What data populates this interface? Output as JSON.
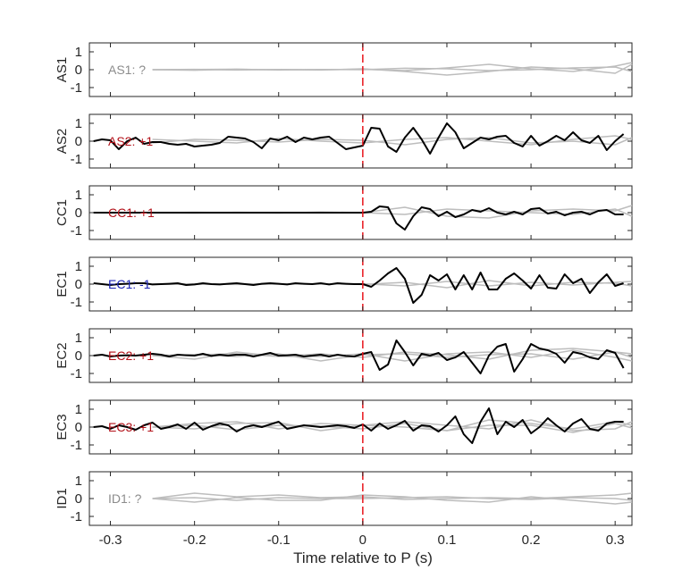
{
  "chart_data": {
    "type": "line",
    "xlabel": "Time relative to P (s)",
    "xlim": [
      -0.325,
      0.32
    ],
    "x_ticks": [
      -0.3,
      -0.2,
      -0.1,
      0,
      0.1,
      0.2,
      0.3
    ],
    "x_tick_labels": [
      "-0.3",
      "-0.2",
      "-0.1",
      "0",
      "0.1",
      "0.2",
      "0.3"
    ],
    "ylim": [
      -1.5,
      1.5
    ],
    "y_ticks": [
      1,
      0,
      -1
    ],
    "y_tick_labels": [
      "1",
      "0",
      "-1"
    ],
    "marker_time": 0,
    "colors": {
      "axis": "#262626",
      "background_trace": "#bdbdbd",
      "main_trace": "#000000",
      "marker": "#e8141c",
      "positive_label": "#b3121a",
      "negative_label": "#1d25b5",
      "unknown_label": "#8c8c8c"
    },
    "background_t": [
      -0.25,
      -0.2,
      -0.15,
      -0.1,
      -0.05,
      0.0,
      0.05,
      0.1,
      0.15,
      0.2,
      0.25,
      0.3,
      0.32
    ],
    "t": [
      -0.32,
      -0.31,
      -0.3,
      -0.29,
      -0.28,
      -0.27,
      -0.26,
      -0.25,
      -0.24,
      -0.23,
      -0.22,
      -0.21,
      -0.2,
      -0.19,
      -0.18,
      -0.17,
      -0.16,
      -0.15,
      -0.14,
      -0.13,
      -0.12,
      -0.11,
      -0.1,
      -0.09,
      -0.08,
      -0.07,
      -0.06,
      -0.05,
      -0.04,
      -0.03,
      -0.02,
      -0.01,
      0.0,
      0.01,
      0.02,
      0.03,
      0.04,
      0.05,
      0.06,
      0.07,
      0.08,
      0.09,
      0.1,
      0.11,
      0.12,
      0.13,
      0.14,
      0.15,
      0.16,
      0.17,
      0.18,
      0.19,
      0.2,
      0.21,
      0.22,
      0.23,
      0.24,
      0.25,
      0.26,
      0.27,
      0.28,
      0.29,
      0.3,
      0.31
    ],
    "panels": [
      {
        "name": "AS1",
        "label": "AS1: ?",
        "polarity": "unknown",
        "background_series": [
          [
            0,
            0.02,
            -0.02,
            0.01,
            0,
            0.02,
            -0.05,
            0.1,
            0.3,
            0.05,
            -0.1,
            0.2,
            0.4
          ],
          [
            0,
            -0.03,
            0.02,
            0,
            -0.02,
            0.05,
            -0.1,
            -0.3,
            -0.1,
            0.15,
            0.05,
            -0.2,
            0.3
          ],
          [
            0,
            0.01,
            0.03,
            -0.02,
            0.01,
            0,
            0.08,
            0.05,
            -0.05,
            0,
            0.1,
            0.15,
            -0.1
          ]
        ],
        "main_series": []
      },
      {
        "name": "AS2",
        "label": "AS2: +1",
        "polarity": "positive",
        "background_series": [
          [
            0.1,
            0,
            -0.1,
            0.15,
            0,
            -0.1,
            0.1,
            0.2,
            0,
            -0.2,
            0.1,
            0.3,
            0.1
          ],
          [
            -0.1,
            0.1,
            0.05,
            -0.05,
            0.1,
            0.05,
            -0.2,
            0.1,
            0.2,
            -0.1,
            0,
            -0.2,
            0.2
          ]
        ],
        "main_series": [
          0,
          0.1,
          0.05,
          -0.45,
          0.0,
          0.2,
          -0.15,
          -0.05,
          -0.05,
          -0.15,
          -0.2,
          -0.15,
          -0.3,
          -0.25,
          -0.2,
          -0.1,
          0.25,
          0.2,
          0.15,
          -0.05,
          -0.4,
          0.15,
          0.05,
          0.25,
          -0.05,
          0.2,
          0.1,
          0.2,
          0.25,
          -0.1,
          -0.45,
          -0.35,
          -0.25,
          0.75,
          0.7,
          -0.3,
          -0.6,
          0.2,
          0.75,
          0.1,
          -0.7,
          0.2,
          1.0,
          0.5,
          -0.4,
          -0.1,
          0.2,
          0.1,
          0.25,
          0.3,
          -0.1,
          -0.3,
          0.3,
          -0.25,
          0.0,
          0.3,
          0.05,
          0.5,
          0.05,
          -0.1,
          0.3,
          -0.5,
          0.0,
          0.4
        ]
      },
      {
        "name": "CC1",
        "label": "CC1: +1",
        "polarity": "positive",
        "background_series": [
          [
            0,
            0.02,
            0,
            -0.02,
            0.03,
            0,
            0.3,
            -0.2,
            -0.3,
            0.1,
            0.2,
            0.1,
            0.4
          ],
          [
            0,
            -0.02,
            0.02,
            0,
            -0.01,
            0,
            -0.1,
            0.2,
            0.1,
            0,
            -0.1,
            0.2,
            -0.2
          ]
        ],
        "main_series": [
          0,
          0,
          0,
          0,
          0,
          0,
          0,
          0,
          0,
          0,
          0,
          0,
          0,
          0,
          0,
          0,
          0,
          0,
          0,
          0,
          0,
          0,
          0,
          0,
          0,
          0,
          0,
          0,
          0,
          0,
          0,
          0,
          0,
          0.05,
          0.35,
          0.3,
          -0.6,
          -0.95,
          -0.2,
          0.3,
          0.2,
          -0.2,
          0.05,
          -0.25,
          -0.1,
          0.15,
          0.05,
          0.25,
          0.0,
          -0.1,
          0.05,
          -0.1,
          0.2,
          0.25,
          -0.05,
          0.05,
          -0.15,
          0.0,
          0.05,
          -0.1,
          0.1,
          0.15,
          -0.1,
          -0.1
        ]
      },
      {
        "name": "EC1",
        "label": "EC1: -1",
        "polarity": "negative",
        "background_series": [
          [
            0,
            0.02,
            -0.02,
            0,
            0.02,
            -0.02,
            0.1,
            -0.2,
            0.2,
            -0.1,
            0.1,
            0.05,
            -0.1
          ],
          [
            0,
            -0.02,
            0.02,
            0.01,
            0,
            0.02,
            -0.1,
            0.15,
            -0.1,
            0.1,
            -0.05,
            0.1,
            0.15
          ]
        ],
        "main_series": [
          0.05,
          0,
          -0.05,
          0.0,
          0.02,
          0.05,
          0.05,
          -0.02,
          0,
          0.02,
          0.05,
          -0.05,
          -0.02,
          0.05,
          0,
          -0.02,
          0.02,
          0.05,
          0,
          -0.05,
          0.02,
          0.05,
          0.02,
          -0.02,
          0.05,
          0.02,
          0,
          0.05,
          -0.02,
          0.05,
          0.02,
          0.0,
          0.0,
          -0.15,
          0.2,
          0.6,
          0.9,
          0.3,
          -1.05,
          -0.6,
          0.5,
          0.2,
          0.55,
          -0.3,
          0.5,
          -0.3,
          0.65,
          -0.3,
          -0.3,
          0.3,
          0.6,
          0.2,
          -0.25,
          0.5,
          -0.2,
          -0.25,
          0.55,
          0.05,
          0.3,
          -0.5,
          0.1,
          0.55,
          -0.1,
          0.05
        ]
      },
      {
        "name": "EC2",
        "label": "EC2: +1",
        "polarity": "positive",
        "background_series": [
          [
            0,
            0.05,
            0.1,
            -0.05,
            0.1,
            -0.1,
            0.2,
            0.05,
            -0.2,
            0.3,
            0.4,
            0.2,
            0.1
          ],
          [
            0,
            -0.2,
            0.2,
            -0.05,
            -0.05,
            0.1,
            -0.3,
            0.1,
            0.2,
            -0.1,
            0.3,
            -0.1,
            -0.3
          ],
          [
            0,
            0.05,
            -0.05,
            0.1,
            -0.3,
            0.05,
            0.1,
            -0.1,
            0.05,
            0.1,
            -0.2,
            0.2,
            -0.1
          ]
        ],
        "main_series": [
          0,
          0.05,
          -0.05,
          0,
          0.02,
          0.0,
          0.05,
          0.1,
          0.05,
          -0.05,
          0.05,
          0.02,
          0.0,
          0.1,
          -0.02,
          0.05,
          0.0,
          0.05,
          0.05,
          -0.05,
          0.05,
          0.15,
          0.0,
          0.02,
          0.05,
          -0.05,
          0.0,
          0.05,
          -0.05,
          0.05,
          -0.02,
          -0.05,
          0.1,
          0.2,
          -0.8,
          -0.5,
          0.85,
          0.2,
          -0.55,
          0.1,
          0.0,
          0.15,
          -0.25,
          -0.1,
          0.2,
          -0.4,
          -1.0,
          0.0,
          0.5,
          0.65,
          -0.9,
          -0.2,
          0.65,
          0.4,
          0.3,
          0.1,
          -0.4,
          0.2,
          0.1,
          -0.1,
          -0.2,
          0.3,
          0.15,
          -0.7
        ]
      },
      {
        "name": "EC3",
        "label": "EC3: +1",
        "polarity": "positive",
        "background_series": [
          [
            0,
            0.2,
            0.3,
            -0.1,
            0.2,
            0.1,
            0.0,
            -0.2,
            0.4,
            0.2,
            -0.1,
            0.3,
            0.1
          ],
          [
            0,
            -0.1,
            0.2,
            0.25,
            -0.2,
            0.1,
            0.3,
            0.1,
            -0.1,
            0.4,
            -0.2,
            -0.1,
            0.3
          ],
          [
            0,
            0.1,
            -0.15,
            0.1,
            0.05,
            -0.1,
            0.2,
            -0.2,
            0.1,
            0.1,
            -0.3,
            0.2,
            -0.05
          ]
        ],
        "main_series": [
          0,
          0.05,
          -0.1,
          0.1,
          0.0,
          -0.15,
          0.1,
          0.25,
          -0.1,
          0.0,
          0.15,
          -0.1,
          0.25,
          -0.15,
          0.05,
          0.2,
          0.1,
          -0.25,
          0.0,
          0.1,
          0.0,
          0.15,
          0.3,
          -0.1,
          0.0,
          0.1,
          0.05,
          0.0,
          0.05,
          0.1,
          0.05,
          -0.05,
          0.15,
          -0.2,
          0.2,
          -0.1,
          0.1,
          0.35,
          -0.2,
          0.1,
          0.05,
          -0.25,
          0.1,
          0.6,
          -0.4,
          -0.9,
          0.3,
          1.05,
          -0.4,
          0.3,
          0.0,
          0.4,
          -0.35,
          0.0,
          0.5,
          0.1,
          -0.25,
          0.2,
          0.45,
          -0.1,
          -0.2,
          0.2,
          0.3,
          0.3
        ]
      },
      {
        "name": "ID1",
        "label": "ID1: ?",
        "polarity": "unknown",
        "background_series": [
          [
            0,
            0.3,
            0.1,
            0.2,
            0.05,
            0.1,
            -0.05,
            0.0,
            0.05,
            0.0,
            0.1,
            0.2,
            0.3
          ],
          [
            0,
            -0.2,
            0.05,
            -0.1,
            -0.1,
            0.2,
            0.1,
            -0.1,
            -0.2,
            0.1,
            -0.1,
            -0.3,
            -0.2
          ],
          [
            0,
            0.05,
            -0.1,
            0.05,
            0.0,
            0.0,
            0.05,
            0.1,
            0.0,
            -0.05,
            0.05,
            0.0,
            -0.1
          ]
        ],
        "main_series": []
      }
    ]
  }
}
